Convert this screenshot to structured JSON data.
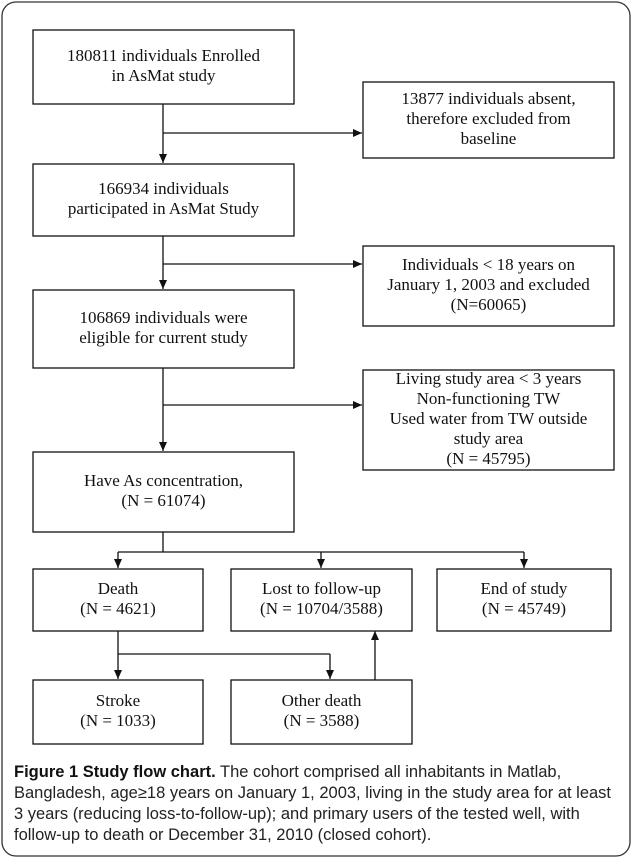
{
  "nodes": [
    {
      "lines": [
        "180811 individuals Enrolled",
        "in AsMat study"
      ]
    },
    {
      "lines": [
        "13877 individuals absent,",
        "therefore excluded from",
        "baseline"
      ]
    },
    {
      "lines": [
        "166934 individuals",
        "participated in AsMat Study"
      ]
    },
    {
      "lines": [
        "Individuals < 18 years on",
        "January 1, 2003 and excluded",
        "(N=60065)"
      ]
    },
    {
      "lines": [
        "106869 individuals were",
        "eligible for current study"
      ]
    },
    {
      "lines": [
        "Living study area < 3 years",
        "Non-functioning TW",
        "Used water from TW outside",
        "study area",
        "(N = 45795)"
      ]
    },
    {
      "lines": [
        "Have As concentration,",
        "(N = 61074)"
      ]
    },
    {
      "lines": [
        "Death",
        "(N = 4621)"
      ]
    },
    {
      "lines": [
        "Lost to follow-up",
        "(N = 10704/3588)"
      ]
    },
    {
      "lines": [
        "End of study",
        "(N = 45749)"
      ]
    },
    {
      "lines": [
        "Stroke",
        "(N = 1033)"
      ]
    },
    {
      "lines": [
        "Other death",
        "(N = 3588)"
      ]
    }
  ],
  "caption": {
    "title": "Figure 1 Study flow chart.",
    "text": "The cohort comprised all inhabitants in Matlab, Bangladesh, age≥18 years on January 1, 2003, living in the study area for at least 3 years (reducing loss-to-follow-up); and primary users of the tested well, with follow-up to death or December 31, 2010 (closed cohort)."
  }
}
